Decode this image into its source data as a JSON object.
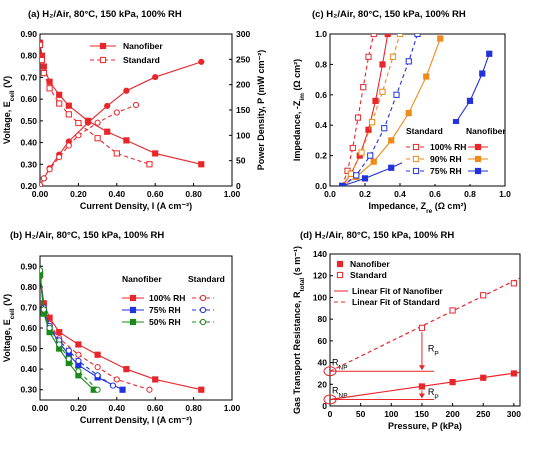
{
  "chart_data": [
    {
      "id": "a",
      "type": "line",
      "title": "(a) H₂/Air, 80°C, 150 kPa, 100% RH",
      "xlabel": "Current Density, I (A cm⁻²)",
      "ylabel": "Voltage, E_cell (V)",
      "y2label": "Power Density, P (mW cm⁻²)",
      "xlim": [
        0,
        1.0
      ],
      "ylim": [
        0.2,
        0.9
      ],
      "y2lim": [
        0,
        300
      ],
      "xticks": [
        "0.00",
        "0.20",
        "0.40",
        "0.60",
        "0.80",
        "1.00"
      ],
      "yticks": [
        "0.20",
        "0.30",
        "0.40",
        "0.50",
        "0.60",
        "0.70",
        "0.80",
        "0.90"
      ],
      "y2ticks": [
        "0",
        "50",
        "100",
        "150",
        "200",
        "250",
        "300"
      ],
      "legend_position": "top-center",
      "series": [
        {
          "name": "Nanofiber",
          "axis": "left",
          "color": "#e8262b",
          "filled": true,
          "x": [
            0.0,
            0.01,
            0.02,
            0.05,
            0.1,
            0.15,
            0.25,
            0.35,
            0.45,
            0.6,
            0.84
          ],
          "y": [
            0.86,
            0.8,
            0.75,
            0.68,
            0.62,
            0.57,
            0.5,
            0.45,
            0.41,
            0.35,
            0.3
          ]
        },
        {
          "name": "Nanofiber",
          "axis": "right",
          "color": "#e8262b",
          "filled": true,
          "x": [
            0.0,
            0.02,
            0.05,
            0.1,
            0.15,
            0.25,
            0.35,
            0.45,
            0.6,
            0.84
          ],
          "y": [
            2,
            15,
            35,
            62,
            88,
            125,
            158,
            188,
            215,
            245
          ]
        },
        {
          "name": "Standard",
          "axis": "left",
          "color": "#e8262b",
          "filled": false,
          "x": [
            0.0,
            0.01,
            0.02,
            0.05,
            0.1,
            0.15,
            0.2,
            0.3,
            0.4,
            0.57
          ],
          "y": [
            0.85,
            0.78,
            0.72,
            0.65,
            0.58,
            0.53,
            0.49,
            0.42,
            0.35,
            0.3
          ]
        },
        {
          "name": "Standard",
          "axis": "right",
          "color": "#e8262b",
          "filled": false,
          "x": [
            0.0,
            0.02,
            0.05,
            0.1,
            0.15,
            0.2,
            0.3,
            0.4,
            0.5
          ],
          "y": [
            2,
            15,
            33,
            57,
            80,
            100,
            125,
            145,
            160
          ]
        }
      ],
      "dashed_series": [
        "Standard"
      ]
    },
    {
      "id": "b",
      "type": "line",
      "title": "(b) H₂/Air, 80°C, 150 kPa, 100% RH",
      "xlabel": "Current Density, I (A cm⁻²)",
      "ylabel": "Voltage, E_cell (V)",
      "xlim": [
        0,
        1.0
      ],
      "ylim": [
        0.25,
        0.95
      ],
      "xticks": [
        "0.00",
        "0.20",
        "0.40",
        "0.60",
        "0.80",
        "1.00"
      ],
      "yticks": [
        "0.30",
        "0.40",
        "0.50",
        "0.60",
        "0.70",
        "0.80",
        "0.90"
      ],
      "legend_header_left": "Nanofiber",
      "legend_header_right": "Standard",
      "legend_position": "right",
      "series": [
        {
          "name": "100% RH",
          "group": "Nanofiber",
          "color": "#e8262b",
          "filled": true,
          "x": [
            0.0,
            0.02,
            0.05,
            0.1,
            0.2,
            0.3,
            0.45,
            0.6,
            0.84
          ],
          "y": [
            0.86,
            0.72,
            0.65,
            0.58,
            0.52,
            0.47,
            0.4,
            0.35,
            0.3
          ]
        },
        {
          "name": "100% RH",
          "group": "Standard",
          "color": "#e8262b",
          "filled": false,
          "x": [
            0.0,
            0.02,
            0.05,
            0.1,
            0.2,
            0.3,
            0.4,
            0.57
          ],
          "y": [
            0.85,
            0.7,
            0.62,
            0.55,
            0.47,
            0.41,
            0.35,
            0.3
          ]
        },
        {
          "name": "75% RH",
          "group": "Nanofiber",
          "color": "#2233dd",
          "filled": true,
          "x": [
            0.0,
            0.02,
            0.05,
            0.1,
            0.15,
            0.2,
            0.3,
            0.43
          ],
          "y": [
            0.86,
            0.68,
            0.6,
            0.53,
            0.47,
            0.42,
            0.36,
            0.3
          ]
        },
        {
          "name": "75% RH",
          "group": "Standard",
          "color": "#2233dd",
          "filled": false,
          "x": [
            0.0,
            0.02,
            0.05,
            0.1,
            0.15,
            0.2,
            0.3,
            0.38
          ],
          "y": [
            0.88,
            0.7,
            0.61,
            0.54,
            0.49,
            0.44,
            0.37,
            0.32
          ]
        },
        {
          "name": "50% RH",
          "group": "Nanofiber",
          "color": "#1a8a1a",
          "filled": true,
          "x": [
            0.0,
            0.02,
            0.05,
            0.1,
            0.15,
            0.2,
            0.28
          ],
          "y": [
            0.86,
            0.67,
            0.58,
            0.5,
            0.43,
            0.37,
            0.3
          ]
        },
        {
          "name": "50% RH",
          "group": "Standard",
          "color": "#1a8a1a",
          "filled": false,
          "x": [
            0.0,
            0.02,
            0.05,
            0.1,
            0.15,
            0.2,
            0.3
          ],
          "y": [
            0.88,
            0.69,
            0.6,
            0.52,
            0.45,
            0.39,
            0.3
          ]
        }
      ]
    },
    {
      "id": "c",
      "type": "line",
      "title": "(c) H₂/Air, 80°C, 150 kPa, 100% RH",
      "xlabel": "Impedance, Z_re (Ω cm²)",
      "ylabel": "Impedance, -Z_im (Ω cm²)",
      "xlim": [
        0,
        1.0
      ],
      "ylim": [
        0,
        1.0
      ],
      "xticks": [
        "0.0",
        "0.2",
        "0.4",
        "0.6",
        "0.8",
        "1.0"
      ],
      "yticks": [
        "0.0",
        "0.2",
        "0.4",
        "0.6",
        "0.8",
        "1.0"
      ],
      "legend_header_left": "Standard",
      "legend_header_right": "Nanofiber",
      "legend_position": "bottom-right",
      "series": [
        {
          "name": "100% RH",
          "group": "Standard",
          "color": "#e8262b",
          "filled": false,
          "x": [
            0.07,
            0.1,
            0.13,
            0.16,
            0.19,
            0.22,
            0.25
          ],
          "y": [
            0,
            0.1,
            0.25,
            0.45,
            0.65,
            0.85,
            1.0
          ]
        },
        {
          "name": "100% RH",
          "group": "Nanofiber",
          "color": "#e8262b",
          "filled": true,
          "x": [
            0.07,
            0.12,
            0.17,
            0.22,
            0.26,
            0.3,
            0.33
          ],
          "y": [
            0,
            0.08,
            0.2,
            0.37,
            0.56,
            0.8,
            1.0
          ]
        },
        {
          "name": "90% RH",
          "group": "Standard",
          "color": "#f08a1a",
          "filled": false,
          "x": [
            0.07,
            0.12,
            0.18,
            0.24,
            0.3,
            0.36,
            0.4
          ],
          "y": [
            0,
            0.08,
            0.22,
            0.42,
            0.62,
            0.85,
            1.0
          ]
        },
        {
          "name": "90% RH",
          "group": "Nanofiber",
          "color": "#f08a1a",
          "filled": true,
          "x": [
            0.07,
            0.15,
            0.25,
            0.35,
            0.45,
            0.55,
            0.63
          ],
          "y": [
            0,
            0.06,
            0.16,
            0.3,
            0.48,
            0.72,
            0.97
          ]
        },
        {
          "name": "75% RH",
          "group": "Standard",
          "color": "#2233dd",
          "filled": false,
          "x": [
            0.07,
            0.15,
            0.23,
            0.31,
            0.38,
            0.45,
            0.5
          ],
          "y": [
            0,
            0.07,
            0.2,
            0.38,
            0.6,
            0.82,
            1.0
          ]
        },
        {
          "name": "75% RH",
          "group": "Nanofiber",
          "color": "#2233dd",
          "filled": true,
          "x": [
            0.07,
            0.2,
            0.35,
            0.5,
            0.62,
            0.72,
            0.8,
            0.87,
            0.91
          ],
          "y": [
            0,
            0.05,
            0.12,
            0.2,
            0.3,
            0.42,
            0.56,
            0.74,
            0.87
          ]
        }
      ]
    },
    {
      "id": "d",
      "type": "scatter",
      "title": "(d) H₂/Air, 80°C, 150 kPa, 100% RH",
      "xlabel": "Pressure, P (kPa)",
      "ylabel": "Gas Transport Resistance, R_total (s m⁻¹)",
      "xlim": [
        0,
        310
      ],
      "ylim": [
        0,
        140
      ],
      "xticks": [
        "0",
        "50",
        "100",
        "150",
        "200",
        "250",
        "300"
      ],
      "yticks": [
        "0",
        "20",
        "40",
        "60",
        "80",
        "100",
        "120",
        "140"
      ],
      "legend_position": "top-left",
      "series": [
        {
          "name": "Nanofiber",
          "color": "#e8262b",
          "filled": true,
          "x": [
            150,
            200,
            250,
            300
          ],
          "y": [
            18,
            22,
            26,
            30
          ]
        },
        {
          "name": "Standard",
          "color": "#e8262b",
          "filled": false,
          "x": [
            150,
            200,
            250,
            300
          ],
          "y": [
            72,
            88,
            102,
            113
          ]
        }
      ],
      "fits": [
        {
          "name": "Linear Fit of Nanofiber",
          "color": "#e8262b",
          "dashed": false,
          "x": [
            0,
            310
          ],
          "y": [
            6,
            31
          ]
        },
        {
          "name": "Linear Fit of Standard",
          "color": "#e8262b",
          "dashed": true,
          "x": [
            0,
            310
          ],
          "y": [
            32,
            118
          ]
        }
      ],
      "annotations": [
        "R_NP",
        "R_P",
        "R_NP",
        "R_P"
      ]
    }
  ]
}
